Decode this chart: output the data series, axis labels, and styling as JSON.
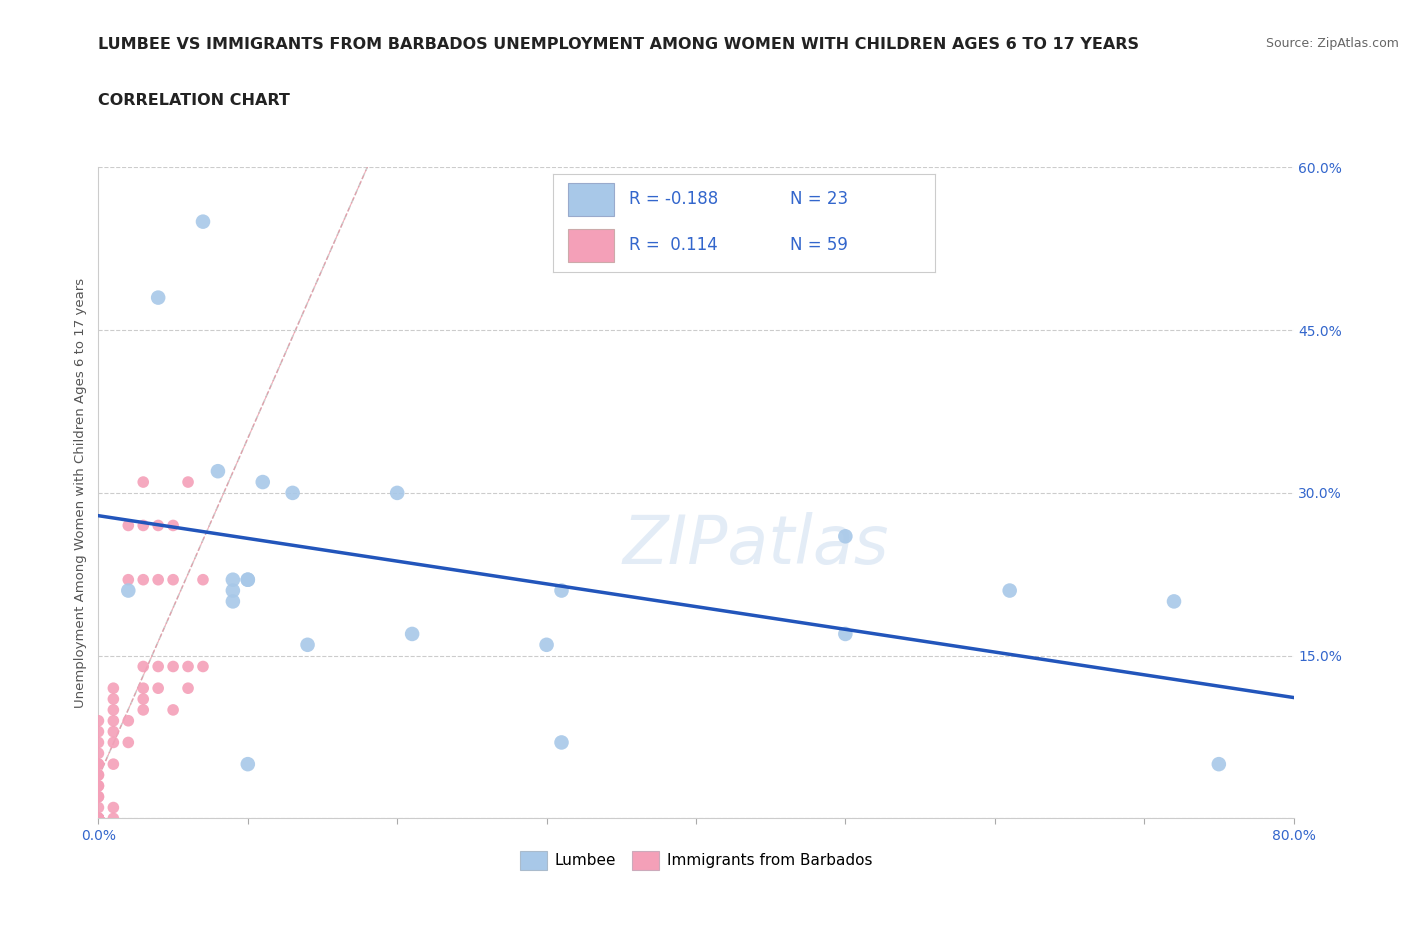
{
  "title_line1": "LUMBEE VS IMMIGRANTS FROM BARBADOS UNEMPLOYMENT AMONG WOMEN WITH CHILDREN AGES 6 TO 17 YEARS",
  "title_line2": "CORRELATION CHART",
  "source_text": "Source: ZipAtlas.com",
  "ylabel": "Unemployment Among Women with Children Ages 6 to 17 years",
  "xlim": [
    0.0,
    0.8
  ],
  "ylim": [
    0.0,
    0.6
  ],
  "xticks": [
    0.0,
    0.1,
    0.2,
    0.3,
    0.4,
    0.5,
    0.6,
    0.7,
    0.8
  ],
  "yticks": [
    0.0,
    0.15,
    0.3,
    0.45,
    0.6
  ],
  "grid_color": "#cccccc",
  "background_color": "#ffffff",
  "watermark": "ZIPatlas",
  "lumbee_color": "#a8c8e8",
  "barbados_color": "#f4a0b8",
  "lumbee_R": -0.188,
  "lumbee_N": 23,
  "barbados_R": 0.114,
  "barbados_N": 59,
  "trend_lumbee_color": "#2255bb",
  "trend_barbados_color": "#ee8899",
  "legend_text_color": "#3366cc",
  "tick_color": "#3366cc",
  "lumbee_x": [
    0.02,
    0.04,
    0.07,
    0.08,
    0.09,
    0.09,
    0.09,
    0.1,
    0.1,
    0.1,
    0.11,
    0.13,
    0.14,
    0.2,
    0.21,
    0.3,
    0.31,
    0.31,
    0.5,
    0.5,
    0.61,
    0.72,
    0.75
  ],
  "lumbee_y": [
    0.21,
    0.48,
    0.55,
    0.32,
    0.2,
    0.21,
    0.22,
    0.05,
    0.22,
    0.22,
    0.31,
    0.3,
    0.16,
    0.3,
    0.17,
    0.16,
    0.07,
    0.21,
    0.26,
    0.17,
    0.21,
    0.2,
    0.05
  ],
  "barbados_x": [
    0.0,
    0.0,
    0.0,
    0.0,
    0.0,
    0.0,
    0.0,
    0.0,
    0.0,
    0.0,
    0.0,
    0.0,
    0.0,
    0.0,
    0.0,
    0.0,
    0.0,
    0.0,
    0.0,
    0.0,
    0.0,
    0.0,
    0.0,
    0.0,
    0.0,
    0.0,
    0.01,
    0.01,
    0.01,
    0.01,
    0.01,
    0.01,
    0.01,
    0.01,
    0.01,
    0.02,
    0.02,
    0.02,
    0.02,
    0.03,
    0.03,
    0.03,
    0.03,
    0.03,
    0.03,
    0.03,
    0.04,
    0.04,
    0.04,
    0.04,
    0.05,
    0.05,
    0.05,
    0.05,
    0.06,
    0.06,
    0.06,
    0.07,
    0.07
  ],
  "barbados_y": [
    0.0,
    0.0,
    0.0,
    0.0,
    0.0,
    0.0,
    0.0,
    0.0,
    0.0,
    0.0,
    0.0,
    0.0,
    0.0,
    0.01,
    0.02,
    0.02,
    0.03,
    0.03,
    0.04,
    0.04,
    0.05,
    0.05,
    0.06,
    0.07,
    0.08,
    0.09,
    0.0,
    0.01,
    0.05,
    0.07,
    0.08,
    0.09,
    0.1,
    0.11,
    0.12,
    0.07,
    0.09,
    0.22,
    0.27,
    0.1,
    0.11,
    0.12,
    0.14,
    0.22,
    0.27,
    0.31,
    0.12,
    0.14,
    0.22,
    0.27,
    0.1,
    0.14,
    0.22,
    0.27,
    0.12,
    0.14,
    0.31,
    0.14,
    0.22
  ],
  "title_fontsize": 11.5,
  "label_fontsize": 9.5,
  "tick_fontsize": 10,
  "legend_fontsize": 12
}
